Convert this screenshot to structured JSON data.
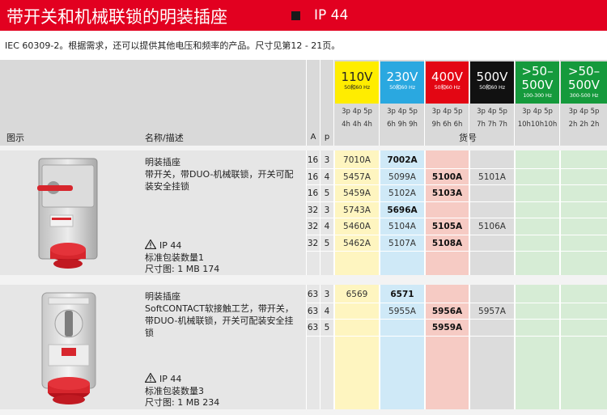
{
  "header": {
    "title": "带开关和机械联锁的明装插座",
    "ip_label": "IP 44",
    "bar_color": "#e20020"
  },
  "intro": "IEC 60309-2。根据需求，还可以提供其他电压和频率的产品。尺寸见第12 - 21页。",
  "table_header": {
    "image_label": "图示",
    "name_label": "名称/描述",
    "a_label": "A",
    "p_label": "p",
    "order_label": "货号"
  },
  "voltage_columns": [
    {
      "voltage": "110V",
      "freq": "50和60 Hz",
      "pins": [
        "3p 4p 5p",
        "4h 4h 4h"
      ],
      "color": "#ffed00",
      "body_color": "#fef5c0"
    },
    {
      "voltage": "230V",
      "freq": "50和60 Hz",
      "pins": [
        "3p 4p 5p",
        "6h 9h 9h"
      ],
      "color": "#2aa8e0",
      "body_color": "#cfe9f7"
    },
    {
      "voltage": "400V",
      "freq": "50和60 Hz",
      "pins": [
        "3p 4p 5p",
        "9h 6h 6h"
      ],
      "color": "#e30613",
      "body_color": "#f6cbc4"
    },
    {
      "voltage": "500V",
      "freq": "50和60 Hz",
      "pins": [
        "3p 4p 5p",
        "7h 7h 7h"
      ],
      "color": "#111111",
      "body_color": "#dcdcdc"
    },
    {
      "voltage": ">50–\n500V",
      "freq": "100-300 Hz",
      "pins": [
        "3p 4p 5p",
        "10h10h10h"
      ],
      "color": "#159a3c",
      "body_color": "#d6ecd5"
    },
    {
      "voltage": ">50–\n500V",
      "freq": "300-500 Hz",
      "pins": [
        "3p 4p 5p",
        "2h 2h 2h"
      ],
      "color": "#159a3c",
      "body_color": "#d6ecd5"
    }
  ],
  "products": [
    {
      "name": "明装插座",
      "description": "带开关，带DUO-机械联锁，开关可配装安全挂锁",
      "ip": "IP 44",
      "pack": "标准包装数量1",
      "dims": "尺寸图: 1 MB 174",
      "rows": [
        {
          "a": "16",
          "p": "3",
          "codes": [
            "7010A",
            "7002A",
            "",
            "",
            "",
            ""
          ],
          "bold": [
            false,
            true,
            false,
            false,
            false,
            false
          ]
        },
        {
          "a": "16",
          "p": "4",
          "codes": [
            "5457A",
            "5099A",
            "5100A",
            "5101A",
            "",
            ""
          ],
          "bold": [
            false,
            false,
            true,
            false,
            false,
            false
          ]
        },
        {
          "a": "16",
          "p": "5",
          "codes": [
            "5459A",
            "5102A",
            "5103A",
            "",
            "",
            ""
          ],
          "bold": [
            false,
            false,
            true,
            false,
            false,
            false
          ]
        },
        {
          "a": "32",
          "p": "3",
          "codes": [
            "5743A",
            "5696A",
            "",
            "",
            "",
            ""
          ],
          "bold": [
            false,
            true,
            false,
            false,
            false,
            false
          ]
        },
        {
          "a": "32",
          "p": "4",
          "codes": [
            "5460A",
            "5104A",
            "5105A",
            "5106A",
            "",
            ""
          ],
          "bold": [
            false,
            false,
            true,
            false,
            false,
            false
          ]
        },
        {
          "a": "32",
          "p": "5",
          "codes": [
            "5462A",
            "5107A",
            "5108A",
            "",
            "",
            ""
          ],
          "bold": [
            false,
            false,
            true,
            false,
            false,
            false
          ]
        }
      ]
    },
    {
      "name": "明装插座",
      "description": "SoftCONTACT软接触工艺，带开关，带DUO-机械联锁，开关可配装安全挂锁",
      "ip": "IP 44",
      "pack": "标准包装数量3",
      "dims": "尺寸图: 1 MB 234",
      "rows": [
        {
          "a": "63",
          "p": "3",
          "codes": [
            "6569",
            "6571",
            "",
            "",
            "",
            ""
          ],
          "bold": [
            false,
            true,
            false,
            false,
            false,
            false
          ]
        },
        {
          "a": "63",
          "p": "4",
          "codes": [
            "",
            "5955A",
            "5956A",
            "5957A",
            "",
            ""
          ],
          "bold": [
            false,
            false,
            true,
            false,
            false,
            false
          ]
        },
        {
          "a": "63",
          "p": "5",
          "codes": [
            "",
            "",
            "5959A",
            "",
            "",
            ""
          ],
          "bold": [
            false,
            false,
            true,
            false,
            false,
            false
          ]
        }
      ]
    }
  ]
}
